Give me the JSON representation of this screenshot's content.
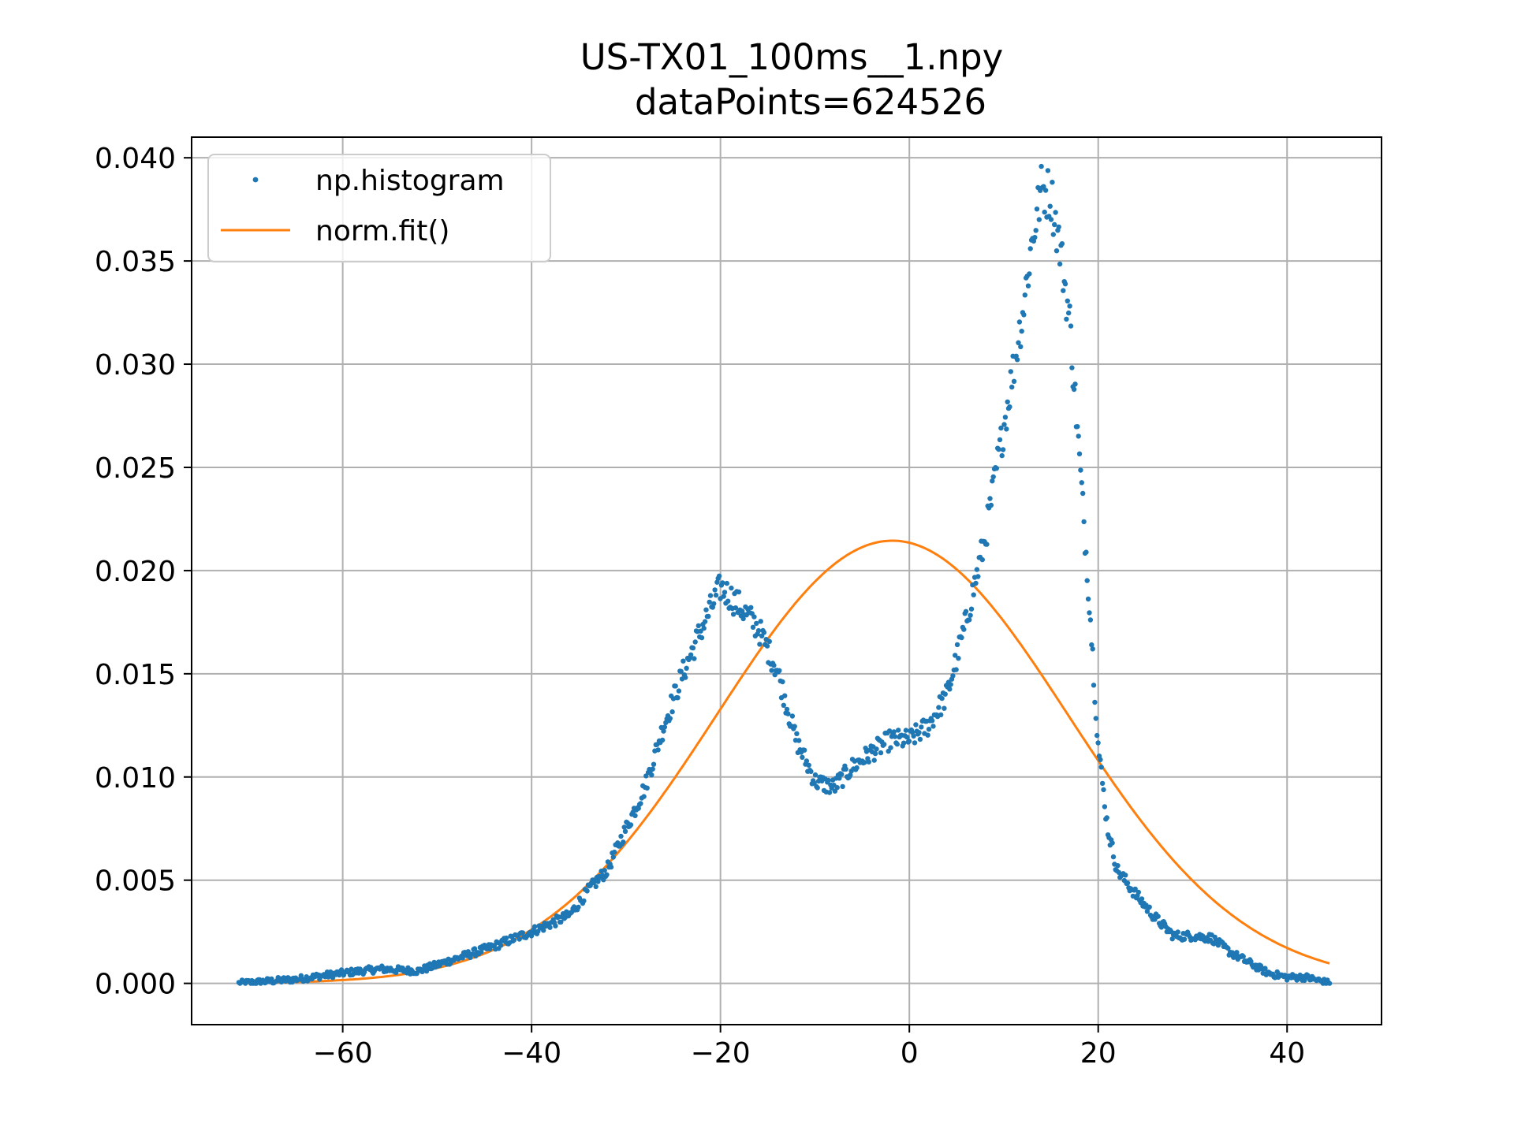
{
  "chart_data": {
    "type": "scatter",
    "title": "US-TX01_100ms__1.npy",
    "subtitle": "dataPoints=624526",
    "xlabel": "",
    "ylabel": "",
    "xlim": [
      -76,
      50
    ],
    "ylim": [
      -0.002,
      0.041
    ],
    "grid": true,
    "legend_placement": "upper-left",
    "x_ticks": [
      -60,
      -40,
      -20,
      0,
      20,
      40
    ],
    "x_tick_labels": [
      "−60",
      "−40",
      "−20",
      "0",
      "20",
      "40"
    ],
    "y_ticks": [
      0.0,
      0.005,
      0.01,
      0.015,
      0.02,
      0.025,
      0.03,
      0.035,
      0.04
    ],
    "y_tick_labels": [
      "0.000",
      "0.005",
      "0.010",
      "0.015",
      "0.020",
      "0.025",
      "0.030",
      "0.035",
      "0.040"
    ],
    "x_range": [
      -71,
      44.5
    ],
    "series": [
      {
        "name": "np.histogram",
        "kind": "points",
        "color": "#1f77b4",
        "knots": [
          [
            -71,
            0.0
          ],
          [
            -65,
            0.0002
          ],
          [
            -60,
            0.0005
          ],
          [
            -56,
            0.0007
          ],
          [
            -52,
            0.0006
          ],
          [
            -48,
            0.0012
          ],
          [
            -44,
            0.0018
          ],
          [
            -40,
            0.0025
          ],
          [
            -36,
            0.0033
          ],
          [
            -34,
            0.0045
          ],
          [
            -32,
            0.0055
          ],
          [
            -30,
            0.0075
          ],
          [
            -28,
            0.0095
          ],
          [
            -26,
            0.0125
          ],
          [
            -24,
            0.015
          ],
          [
            -22,
            0.0172
          ],
          [
            -20,
            0.0192
          ],
          [
            -18,
            0.0183
          ],
          [
            -16,
            0.0172
          ],
          [
            -14,
            0.0152
          ],
          [
            -12,
            0.0118
          ],
          [
            -10,
            0.0098
          ],
          [
            -8,
            0.0095
          ],
          [
            -6,
            0.0105
          ],
          [
            -4,
            0.0112
          ],
          [
            -2,
            0.0118
          ],
          [
            0,
            0.0118
          ],
          [
            2,
            0.0125
          ],
          [
            4,
            0.014
          ],
          [
            6,
            0.0175
          ],
          [
            8,
            0.0215
          ],
          [
            10,
            0.027
          ],
          [
            12,
            0.0325
          ],
          [
            13,
            0.036
          ],
          [
            14,
            0.0385
          ],
          [
            15,
            0.0382
          ],
          [
            16,
            0.0355
          ],
          [
            17,
            0.032
          ],
          [
            18,
            0.0255
          ],
          [
            19,
            0.019
          ],
          [
            20,
            0.0115
          ],
          [
            21,
            0.0075
          ],
          [
            22,
            0.0055
          ],
          [
            24,
            0.0043
          ],
          [
            26,
            0.0032
          ],
          [
            28,
            0.0023
          ],
          [
            30,
            0.0023
          ],
          [
            32,
            0.0022
          ],
          [
            34,
            0.0015
          ],
          [
            36,
            0.001
          ],
          [
            38,
            0.0005
          ],
          [
            40,
            0.0003
          ],
          [
            42,
            0.0003
          ],
          [
            44.5,
            0.0
          ]
        ]
      },
      {
        "name": "norm.fit()",
        "kind": "gaussian",
        "color": "#ff7f0e",
        "mu": -1.8,
        "sigma": 18.6
      }
    ]
  }
}
